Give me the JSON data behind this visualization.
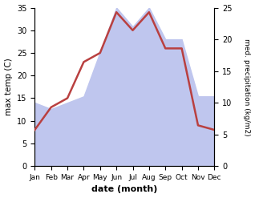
{
  "months": [
    "Jan",
    "Feb",
    "Mar",
    "Apr",
    "May",
    "Jun",
    "Jul",
    "Aug",
    "Sep",
    "Oct",
    "Nov",
    "Dec"
  ],
  "temperature": [
    8,
    13,
    15,
    23,
    25,
    34,
    30,
    34,
    26,
    26,
    9,
    8
  ],
  "precipitation": [
    10,
    9,
    10,
    11,
    18,
    25,
    22,
    25,
    20,
    20,
    11,
    11
  ],
  "temp_color": "#b94040",
  "precip_color_fill": "#bfc6ee",
  "temp_ylim": [
    0,
    35
  ],
  "precip_ylim": [
    0,
    25
  ],
  "temp_yticks": [
    0,
    5,
    10,
    15,
    20,
    25,
    30,
    35
  ],
  "precip_yticks": [
    0,
    5,
    10,
    15,
    20,
    25
  ],
  "xlabel": "date (month)",
  "ylabel_left": "max temp (C)",
  "ylabel_right": "med. precipitation (kg/m2)",
  "bg_color": "#ffffff"
}
